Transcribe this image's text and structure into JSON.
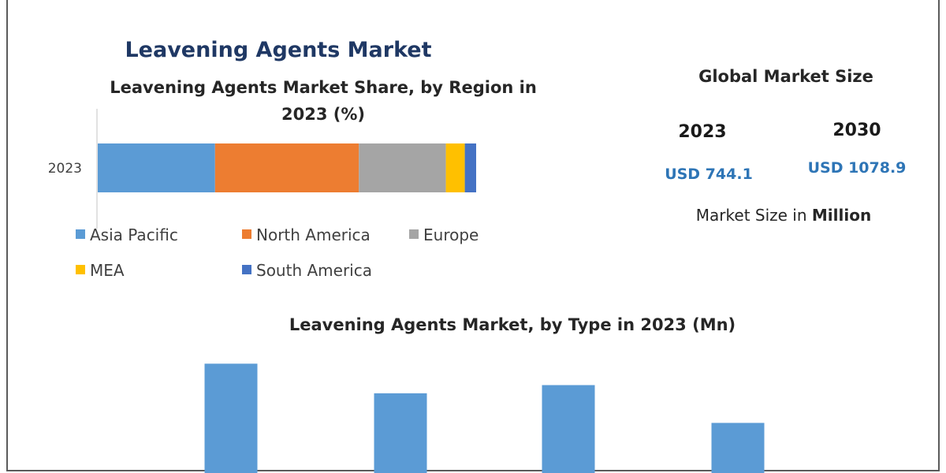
{
  "main_title": "Leavening Agents Market",
  "market_size": {
    "heading": "Global Market Size",
    "years": [
      {
        "year": "2023",
        "value": "USD 744.1"
      },
      {
        "year": "2030",
        "value": "USD 1078.9"
      }
    ],
    "note_prefix": "Market Size in ",
    "note_bold": "Million"
  },
  "colors": {
    "title": "#1f3864",
    "usd": "#2e75b6",
    "Asia Pacific": "#5b9bd5",
    "North America": "#ed7d31",
    "Europe": "#a5a5a5",
    "MEA": "#ffc000",
    "South America": "#4472c4",
    "type_bar": "#5b9bd5"
  },
  "chart_data": [
    {
      "type": "bar",
      "orientation": "horizontal",
      "stacked": true,
      "title_line1": "Leavening Agents Market Share, by Region in",
      "title_line2": "2023 (%)",
      "categories": [
        "2023"
      ],
      "series": [
        {
          "name": "Asia Pacific",
          "values": [
            31
          ]
        },
        {
          "name": "North America",
          "values": [
            38
          ]
        },
        {
          "name": "Europe",
          "values": [
            23
          ]
        },
        {
          "name": "MEA",
          "values": [
            5
          ]
        },
        {
          "name": "South America",
          "values": [
            3
          ]
        }
      ],
      "xlim": [
        0,
        100
      ],
      "legend": "bottom"
    },
    {
      "type": "bar",
      "title": "Leavening Agents Market, by Type in 2023 (Mn)",
      "categories": [
        "",
        "",
        "",
        ""
      ],
      "values": [
        240,
        175,
        193,
        110
      ],
      "ylim": [
        0,
        270
      ]
    }
  ]
}
